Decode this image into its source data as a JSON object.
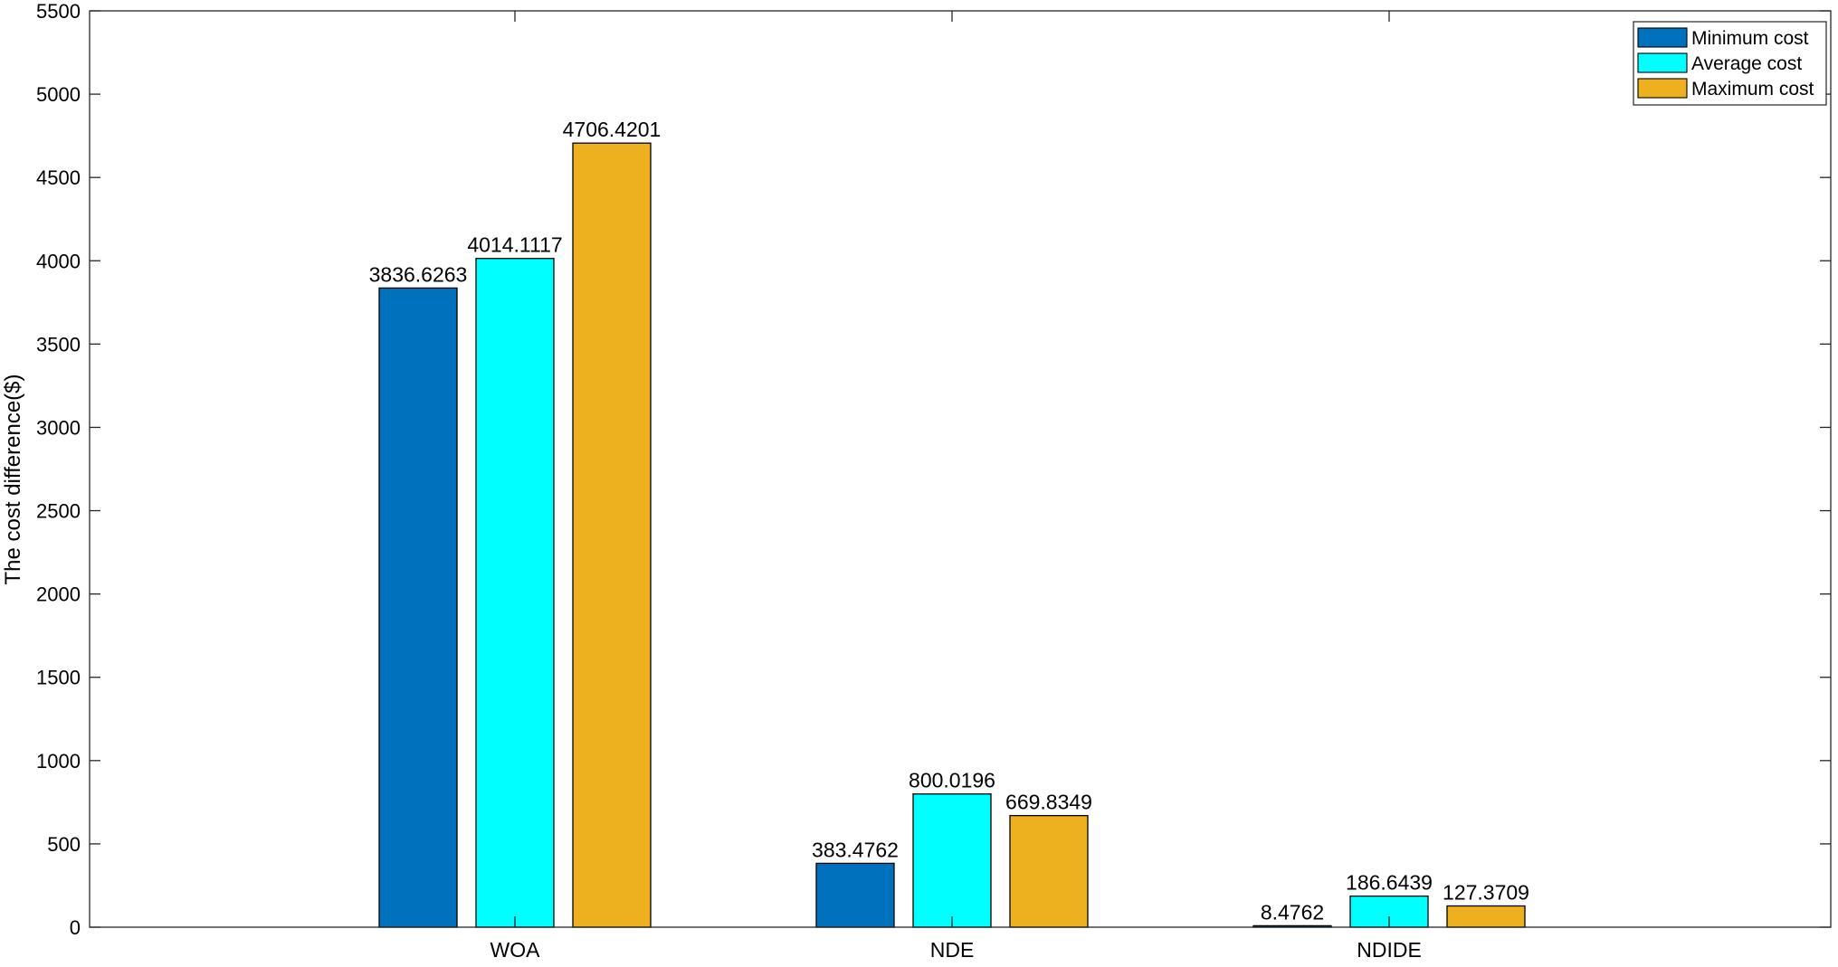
{
  "chart_data": {
    "type": "bar",
    "title": "",
    "xlabel": "",
    "ylabel": "The cost difference($)",
    "ylim": [
      0,
      5500
    ],
    "yticks": [
      0,
      500,
      1000,
      1500,
      2000,
      2500,
      3000,
      3500,
      4000,
      4500,
      5000,
      5500
    ],
    "grid": false,
    "legend_position": "top-right",
    "categories": [
      "WOA",
      "NDE",
      "NDIDE"
    ],
    "series": [
      {
        "name": "Minimum cost",
        "color": "#0072BD",
        "values": [
          3836.6263,
          383.4762,
          8.4762
        ],
        "labels": [
          "3836.6263",
          "383.4762",
          "8.4762"
        ]
      },
      {
        "name": "Average cost",
        "color": "#00FFFF",
        "values": [
          4014.1117,
          800.0196,
          186.6439
        ],
        "labels": [
          "4014.1117",
          "800.0196",
          "186.6439"
        ]
      },
      {
        "name": "Maximum cost",
        "color": "#EDB120",
        "values": [
          4706.4201,
          669.8349,
          127.3709
        ],
        "labels": [
          "4706.4201",
          "669.8349",
          "127.3709"
        ]
      }
    ]
  }
}
